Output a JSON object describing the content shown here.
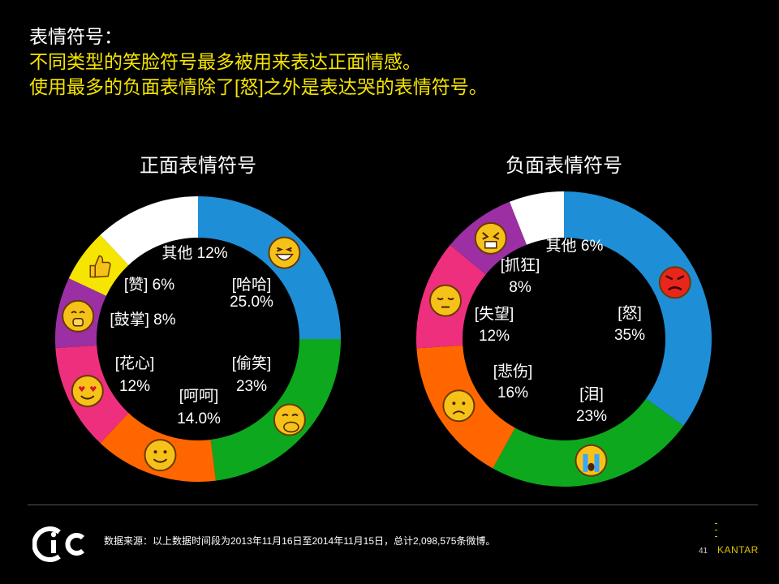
{
  "header": {
    "line1": "表情符号：",
    "line2": "不同类型的笑脸符号最多被用来表达正面情感。",
    "line3": "使用最多的负面表情除了[怒]之外是表达哭的表情符号。"
  },
  "chart_data": [
    {
      "type": "pie",
      "title": "正面表情符号",
      "slices": [
        {
          "label": "[哈哈]",
          "value_label": "25.0%",
          "value": 25.0,
          "color": "#1e8fd6",
          "icon": "laughing-face-icon"
        },
        {
          "label": "[偷笑]",
          "value_label": "23%",
          "value": 23,
          "color": "#0ea81e",
          "icon": "snickering-face-icon"
        },
        {
          "label": "[呵呵]",
          "value_label": "14.0%",
          "value": 14.0,
          "color": "#ff6600",
          "icon": "smiling-face-icon"
        },
        {
          "label": "[花心]",
          "value_label": "12%",
          "value": 12,
          "color": "#ee2f7d",
          "icon": "heart-eyes-face-icon"
        },
        {
          "label": "[鼓掌]",
          "value_label": "8%",
          "value": 8,
          "color": "#9b2fa3",
          "icon": "clapping-face-icon"
        },
        {
          "label": "[赞]",
          "value_label": "6%",
          "value": 6,
          "color": "#f6e500",
          "icon": "thumbs-up-icon"
        },
        {
          "label": "其他",
          "value_label": "12%",
          "value": 12,
          "color": "#ffffff",
          "icon": ""
        }
      ]
    },
    {
      "type": "pie",
      "title": "负面表情符号",
      "slices": [
        {
          "label": "[怒]",
          "value_label": "35%",
          "value": 35,
          "color": "#1e8fd6",
          "icon": "angry-face-icon"
        },
        {
          "label": "[泪]",
          "value_label": "23%",
          "value": 23,
          "color": "#0ea81e",
          "icon": "crying-face-icon"
        },
        {
          "label": "[悲伤]",
          "value_label": "16%",
          "value": 16,
          "color": "#ff6600",
          "icon": "sad-face-icon"
        },
        {
          "label": "[失望]",
          "value_label": "12%",
          "value": 12,
          "color": "#ee2f7d",
          "icon": "disappointed-face-icon"
        },
        {
          "label": "[抓狂]",
          "value_label": "8%",
          "value": 8,
          "color": "#9b2fa3",
          "icon": "frantic-face-icon"
        },
        {
          "label": "其他",
          "value_label": "6%",
          "value": 6,
          "color": "#ffffff",
          "icon": ""
        }
      ]
    }
  ],
  "footer": {
    "logo_text": "CIC",
    "source": "数据来源：以上数据时间段为2013年11月16日至2014年11月15日，总计2,098,575条微博。",
    "page_number": "41",
    "brand": "KANTAR"
  }
}
